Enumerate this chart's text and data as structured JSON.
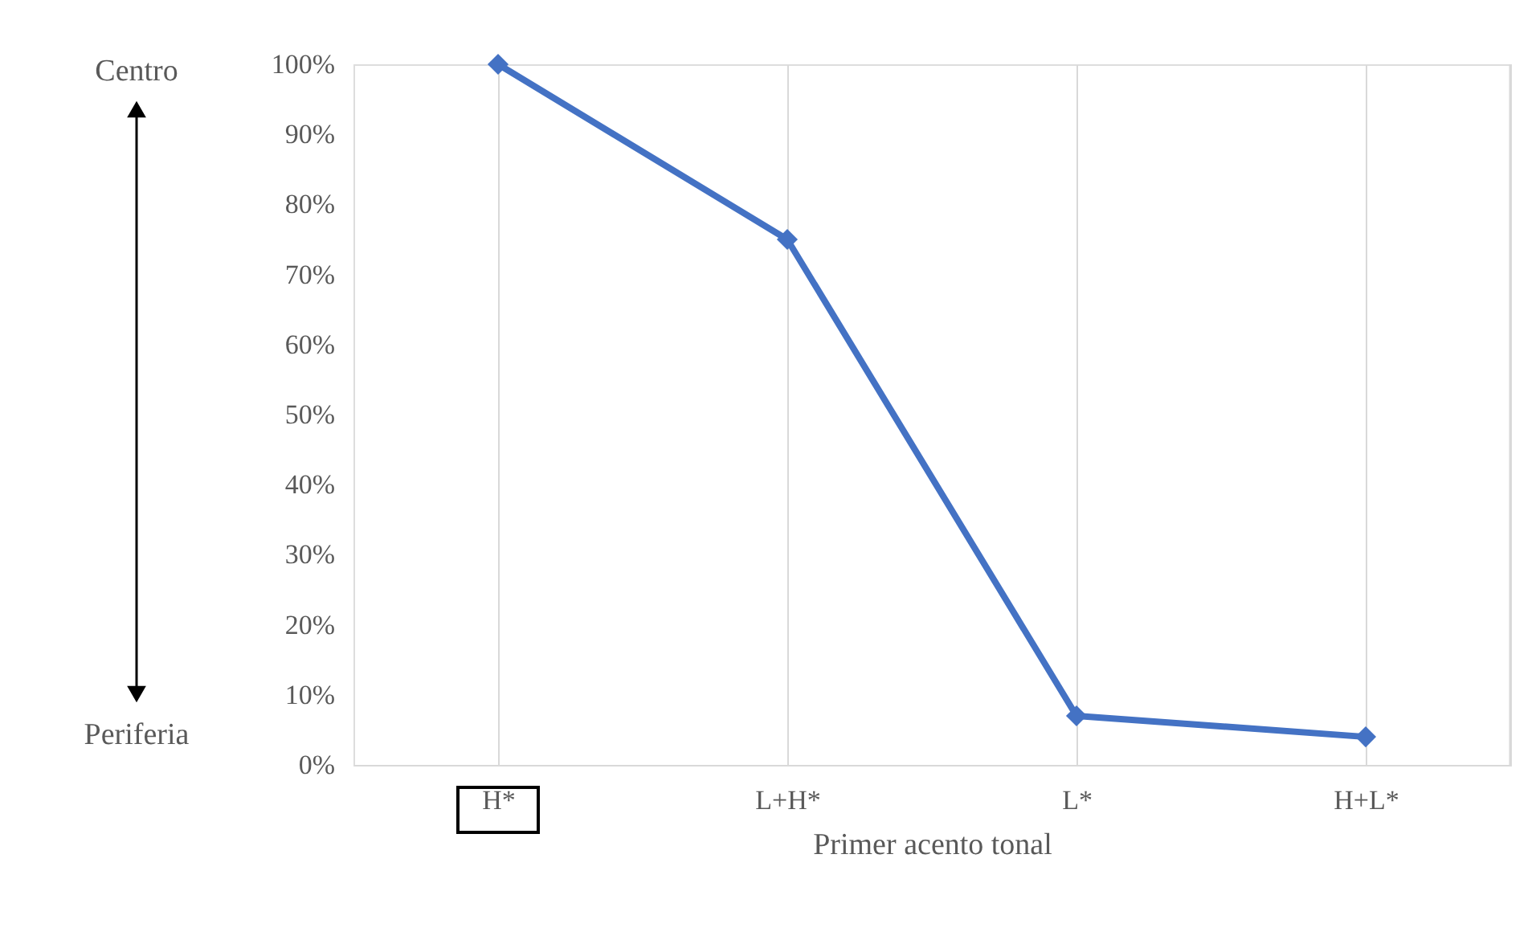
{
  "chart_data": {
    "type": "line",
    "xlabel": "Primer acento tonal",
    "categories": [
      "H*",
      "L+H*",
      "L*",
      "H+L*"
    ],
    "series": [
      {
        "color": "#4472c4",
        "values": [
          100,
          75,
          7,
          4
        ]
      }
    ],
    "ylim": [
      0,
      100
    ],
    "yticks": [
      {
        "value": 0,
        "label": "0%"
      },
      {
        "value": 10,
        "label": "10%"
      },
      {
        "value": 20,
        "label": "20%"
      },
      {
        "value": 30,
        "label": "30%"
      },
      {
        "value": 40,
        "label": "40%"
      },
      {
        "value": 50,
        "label": "50%"
      },
      {
        "value": 60,
        "label": "60%"
      },
      {
        "value": 70,
        "label": "70%"
      },
      {
        "value": 80,
        "label": "80%"
      },
      {
        "value": 90,
        "label": "90%"
      },
      {
        "value": 100,
        "label": "100%"
      }
    ],
    "annotations": [
      "Centro",
      "Periferia"
    ],
    "grid": "x",
    "marker": "diamond",
    "line_style": "solid",
    "legend": false
  }
}
